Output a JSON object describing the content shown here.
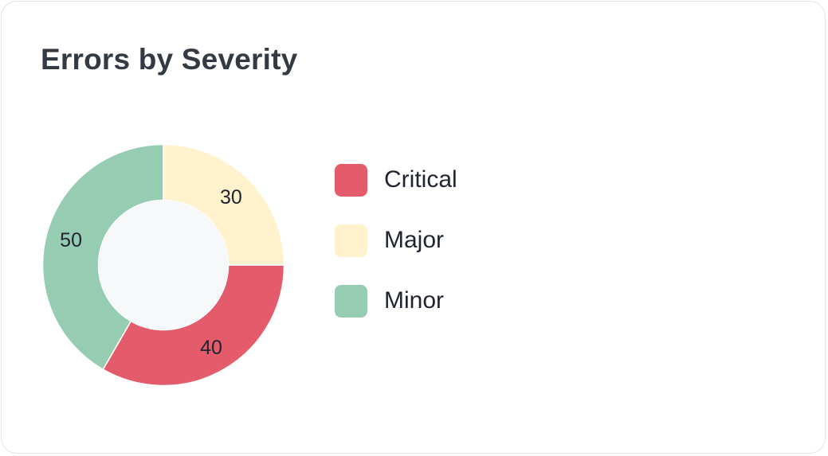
{
  "card": {
    "title": "Errors by Severity"
  },
  "chart_data": {
    "type": "pie",
    "variant": "donut",
    "title": "Errors by Severity",
    "categories": [
      "Critical",
      "Major",
      "Minor"
    ],
    "values": [
      40,
      30,
      50
    ],
    "colors": [
      "#e45c6b",
      "#fff2cc",
      "#96cdb2"
    ],
    "hole_color": "#f6f8fa",
    "separator_color": "#ffffff",
    "legend": {
      "position": "right",
      "items": [
        {
          "label": "Critical",
          "color": "#e45c6b"
        },
        {
          "label": "Major",
          "color": "#fff2cc"
        },
        {
          "label": "Minor",
          "color": "#96cdb2"
        }
      ]
    }
  }
}
